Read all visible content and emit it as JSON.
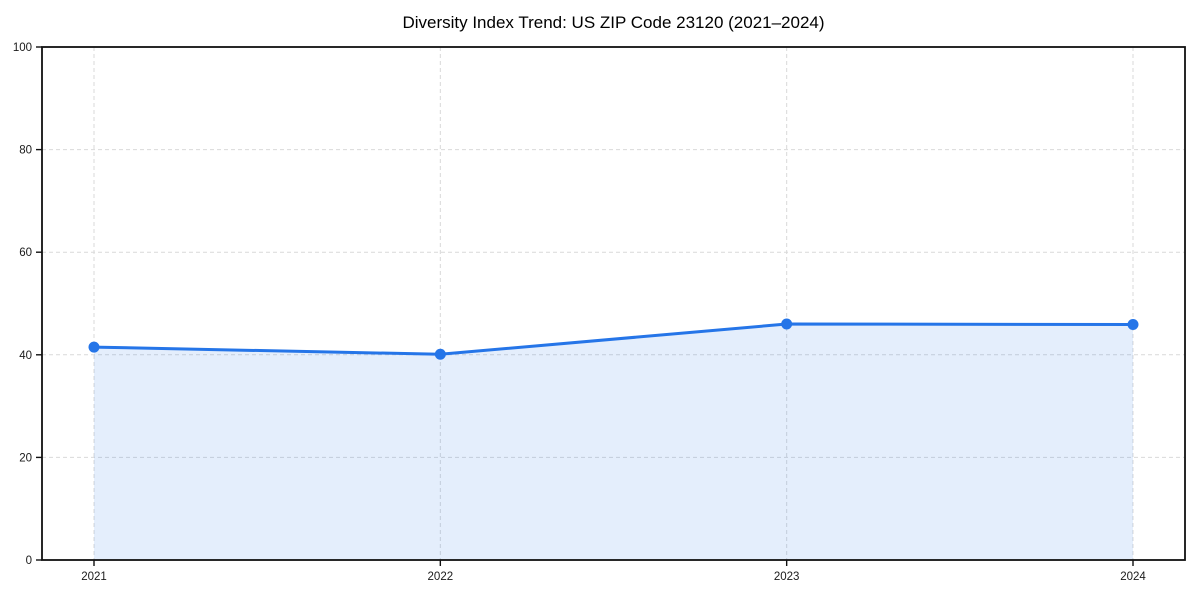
{
  "chart_data": {
    "type": "area",
    "title": "Diversity Index Trend: US ZIP Code 23120 (2021–2024)",
    "series_name": "Diversity Index",
    "categories": [
      "2021",
      "2022",
      "2023",
      "2024"
    ],
    "values": [
      41.5,
      40.1,
      46.0,
      45.9
    ],
    "xlabel": "",
    "ylabel": "",
    "ylim": [
      0,
      100
    ],
    "yticks": [
      0,
      20,
      40,
      60,
      80,
      100
    ],
    "grid": true,
    "grid_style": "dashed",
    "legend_position": "none",
    "line_color": "#2575e8",
    "marker_color": "#2575e8",
    "fill_color_rgba": "rgba(37,117,232,0.12)",
    "grid_color": "#d9d9d9",
    "spine_color": "#111111",
    "tick_label_color": "#1a1a1a",
    "background_color": "#ffffff"
  }
}
